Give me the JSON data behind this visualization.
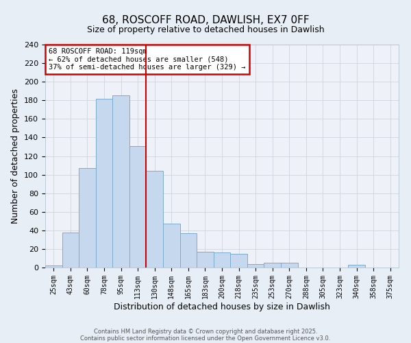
{
  "title": "68, ROSCOFF ROAD, DAWLISH, EX7 0FF",
  "subtitle": "Size of property relative to detached houses in Dawlish",
  "xlabel": "Distribution of detached houses by size in Dawlish",
  "ylabel": "Number of detached properties",
  "bar_labels": [
    "25sqm",
    "43sqm",
    "60sqm",
    "78sqm",
    "95sqm",
    "113sqm",
    "130sqm",
    "148sqm",
    "165sqm",
    "183sqm",
    "200sqm",
    "218sqm",
    "235sqm",
    "253sqm",
    "270sqm",
    "288sqm",
    "305sqm",
    "323sqm",
    "340sqm",
    "358sqm",
    "375sqm"
  ],
  "bar_values": [
    2,
    38,
    107,
    182,
    185,
    131,
    104,
    47,
    37,
    17,
    16,
    15,
    4,
    5,
    5,
    0,
    0,
    0,
    3,
    0,
    0
  ],
  "bar_color": "#c5d8ed",
  "bar_edge_color": "#7aabcf",
  "vline_x": 5.5,
  "vline_color": "#cc0000",
  "ylim": [
    0,
    240
  ],
  "yticks": [
    0,
    20,
    40,
    60,
    80,
    100,
    120,
    140,
    160,
    180,
    200,
    220,
    240
  ],
  "annotation_title": "68 ROSCOFF ROAD: 119sqm",
  "annotation_line1": "← 62% of detached houses are smaller (548)",
  "annotation_line2": "37% of semi-detached houses are larger (329) →",
  "annotation_box_color": "#cc0000",
  "footer1": "Contains HM Land Registry data © Crown copyright and database right 2025.",
  "footer2": "Contains public sector information licensed under the Open Government Licence v3.0.",
  "bg_color": "#e8eef5",
  "plot_bg_color": "#eef2f8",
  "grid_color": "#c8cfd8"
}
